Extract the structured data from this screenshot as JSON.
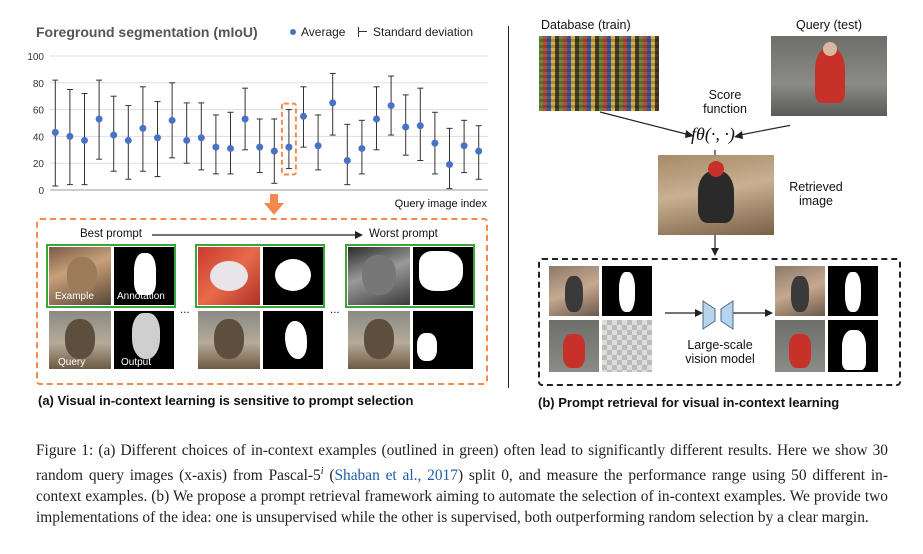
{
  "chart_data": {
    "type": "scatter",
    "title": "Foreground segmentation (mIoU)",
    "xlabel": "Query image index",
    "ylabel": "",
    "ylim": [
      0,
      100
    ],
    "yticks": [
      0,
      20,
      40,
      60,
      80,
      100
    ],
    "grid": true,
    "legend_position": "top-right",
    "series": [
      {
        "name": "Average",
        "values": [
          43,
          40,
          37,
          53,
          41,
          37,
          46,
          39,
          52,
          37,
          39,
          32,
          31,
          53,
          32,
          29,
          32,
          55,
          33,
          65,
          22,
          31,
          53,
          63,
          47,
          48,
          35,
          19,
          33,
          29
        ]
      },
      {
        "name": "Standard deviation",
        "lower": [
          3,
          4,
          4,
          23,
          14,
          8,
          14,
          10,
          24,
          20,
          15,
          12,
          12,
          30,
          13,
          5,
          16,
          32,
          15,
          41,
          4,
          12,
          30,
          41,
          26,
          22,
          12,
          1,
          13,
          8
        ],
        "upper": [
          82,
          75,
          72,
          82,
          70,
          63,
          77,
          66,
          80,
          65,
          65,
          56,
          58,
          76,
          53,
          53,
          60,
          77,
          56,
          87,
          49,
          52,
          77,
          85,
          71,
          76,
          58,
          46,
          52,
          48
        ]
      }
    ],
    "highlight_index": 16
  },
  "panel_a": {
    "best_prompt": "Best prompt",
    "worst_prompt": "Worst prompt",
    "label_example": "Example",
    "label_annotation": "Annotation",
    "label_query": "Query",
    "label_output": "Output",
    "ellipsis": "...",
    "caption": "(a) Visual in-context learning is sensitive to prompt selection"
  },
  "panel_b": {
    "database": "Database (train)",
    "query": "Query (test)",
    "score_function": "Score function",
    "formula": "fθ(·, ·)",
    "retrieved": "Retrieved image",
    "model": "Large-scale vision model",
    "caption": "(b) Prompt retrieval for visual in-context learning"
  },
  "figure_caption": {
    "part1": "Figure 1: (a) Different choices of in-context examples (outlined in green) often lead to significantly different results. Here we show 30 random query images (x-axis) from Pascal-5",
    "sup": "i",
    "space": " (",
    "citation": "Shaban et al., 2017",
    "part2": ") split 0, and measure the performance range using 50 different in-context examples. (b) We propose a prompt retrieval framework aiming to automate the selection of in-context examples. We provide two implementations of the idea: one is unsupervised while the other is supervised, both outperforming random selection by a clear margin."
  },
  "colors": {
    "point": "#4a72c4",
    "highlight": "#f28a4e",
    "green_outline": "#3aa63a",
    "link": "#1f5fa8"
  }
}
